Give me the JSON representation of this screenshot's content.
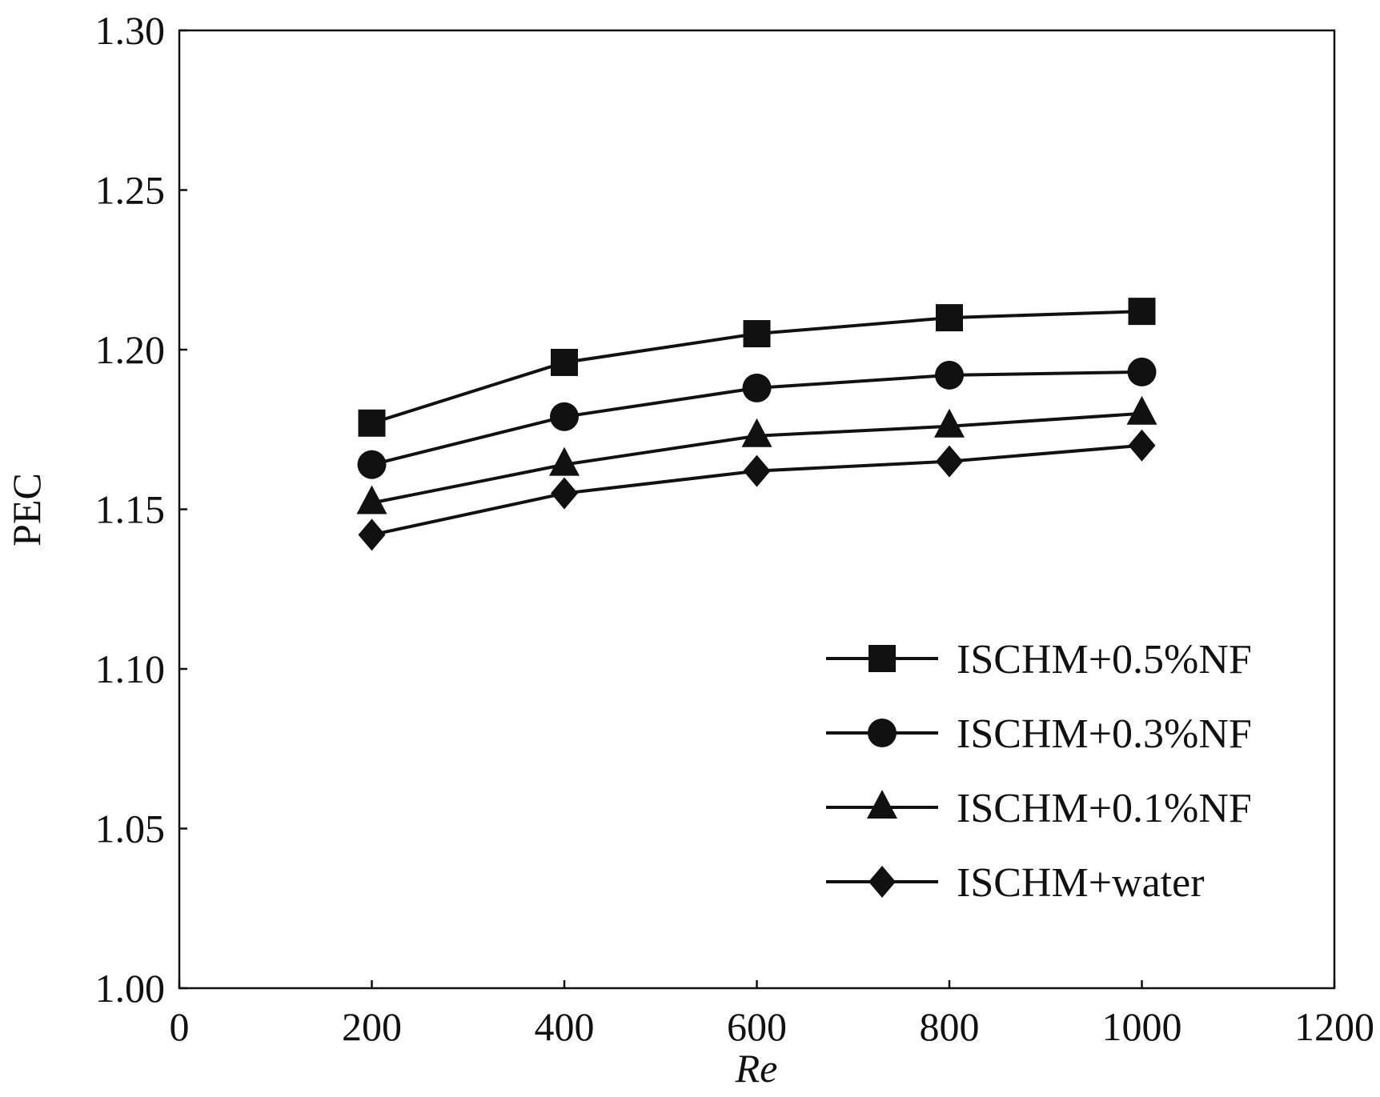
{
  "chart_data": {
    "type": "line",
    "title": "",
    "xlabel": "Re",
    "ylabel": "PEC",
    "xlim": [
      0,
      1200
    ],
    "ylim": [
      1.0,
      1.3
    ],
    "xticks": [
      "0",
      "200",
      "400",
      "600",
      "800",
      "1000",
      "1200"
    ],
    "yticks": [
      "1.00",
      "1.05",
      "1.10",
      "1.15",
      "1.20",
      "1.25",
      "1.30"
    ],
    "grid": false,
    "legend_position": "bottom-right",
    "x": [
      200,
      400,
      600,
      800,
      1000
    ],
    "series": [
      {
        "name": "ISCHM+0.5%NF",
        "marker": "square",
        "values": [
          1.177,
          1.196,
          1.205,
          1.21,
          1.212
        ]
      },
      {
        "name": "ISCHM+0.3%NF",
        "marker": "circle",
        "values": [
          1.164,
          1.179,
          1.188,
          1.192,
          1.193
        ]
      },
      {
        "name": "ISCHM+0.1%NF",
        "marker": "triangle",
        "values": [
          1.152,
          1.164,
          1.173,
          1.176,
          1.18
        ]
      },
      {
        "name": "ISCHM+water",
        "marker": "diamond",
        "values": [
          1.142,
          1.155,
          1.162,
          1.165,
          1.17
        ]
      }
    ],
    "colors": {
      "line": "#111111",
      "marker": "#111111"
    }
  }
}
